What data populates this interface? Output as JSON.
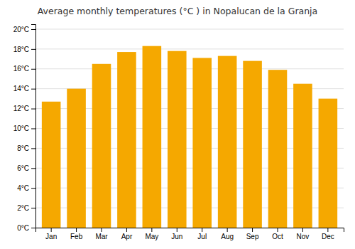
{
  "chart_data": {
    "type": "bar",
    "title": "Average monthly temperatures (°C ) in Nopalucan de la Granja",
    "categories": [
      "Jan",
      "Feb",
      "Mar",
      "Apr",
      "May",
      "Jun",
      "Jul",
      "Aug",
      "Sep",
      "Oct",
      "Nov",
      "Dec"
    ],
    "values": [
      12.7,
      14.0,
      16.5,
      17.7,
      18.3,
      17.8,
      17.1,
      17.3,
      16.8,
      15.9,
      14.5,
      13.0
    ],
    "color": "#F5A800",
    "ylim": [
      0,
      20.5
    ],
    "yticks": [
      {
        "value": 0,
        "label": "0°C"
      },
      {
        "value": 2,
        "label": "2°C"
      },
      {
        "value": 4,
        "label": "4°C"
      },
      {
        "value": 6,
        "label": "6°C"
      },
      {
        "value": 8,
        "label": "8°C"
      },
      {
        "value": 10,
        "label": "10°C"
      },
      {
        "value": 12,
        "label": "12°C"
      },
      {
        "value": 14,
        "label": "14°C"
      },
      {
        "value": 16,
        "label": "16°C"
      },
      {
        "value": 18,
        "label": "18°C"
      },
      {
        "value": 20,
        "label": "20°C"
      }
    ],
    "grid": true
  }
}
